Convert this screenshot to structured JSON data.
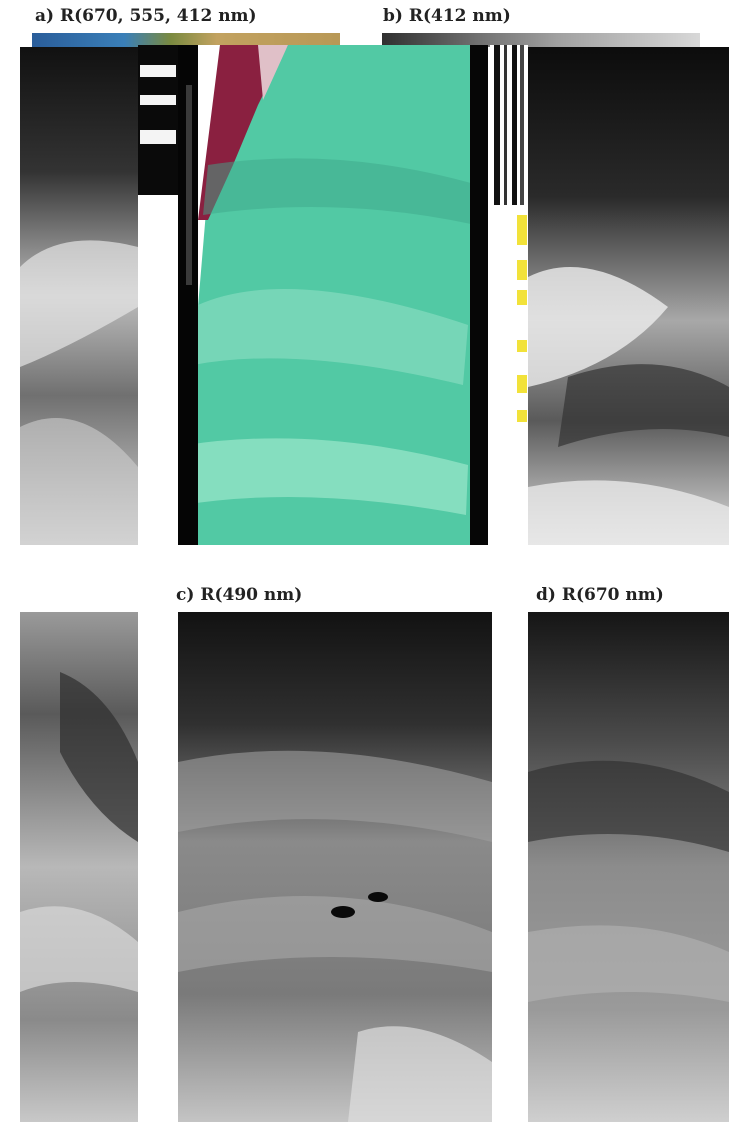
{
  "labels": {
    "a": "a) R(670, 555, 412 nm)",
    "b": "b) R(412 nm)",
    "c": "c) R(490 nm)",
    "d": "d) R(670 nm)"
  },
  "colors": {
    "true_color_water": "#52c9a4",
    "land_red": "#8a2040",
    "strip_top": "#3a7fb8",
    "strip_sand": "#c2a260"
  }
}
